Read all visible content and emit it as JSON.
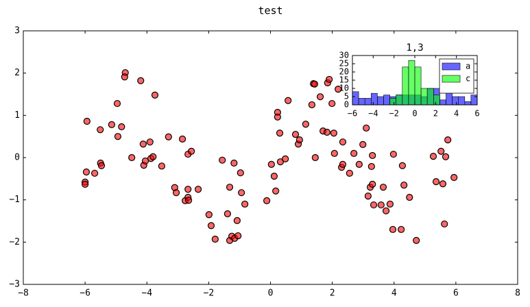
{
  "chart_data": [
    {
      "type": "scatter",
      "title": "test",
      "color": "#ff0000",
      "x": [
        -5.94,
        -5.96,
        -6.0,
        -6.0,
        -5.69,
        -5.51,
        -5.5,
        -5.47,
        -5.14,
        -4.96,
        -4.94,
        -4.82,
        -4.7,
        -4.72,
        -4.49,
        -4.2,
        -4.12,
        -4.1,
        -4.05,
        -3.9,
        -3.87,
        -3.8,
        -3.74,
        -3.52,
        -3.3,
        -3.1,
        -3.05,
        -2.85,
        -2.76,
        -2.67,
        -2.65,
        -2.67,
        -2.56,
        -2.67,
        -2.34,
        -1.99,
        -1.92,
        -1.79,
        -1.56,
        -1.39,
        -1.32,
        -1.32,
        -1.25,
        -1.16,
        -1.18,
        -1.08,
        -1.05,
        -0.97,
        -0.94,
        -0.83,
        -0.12,
        0.03,
        0.12,
        0.17,
        0.23,
        0.23,
        0.3,
        0.32,
        0.48,
        0.57,
        0.81,
        0.9,
        0.94,
        1.14,
        1.34,
        1.39,
        1.43,
        1.45,
        1.61,
        1.7,
        1.83,
        1.85,
        1.9,
        1.99,
        2.05,
        2.07,
        2.19,
        2.3,
        2.34,
        2.34,
        2.56,
        2.7,
        2.87,
        2.99,
        3.1,
        3.16,
        3.23,
        3.27,
        3.3,
        3.3,
        3.34,
        3.58,
        3.74,
        3.87,
        3.65,
        3.96,
        3.98,
        4.23,
        4.27,
        4.32,
        4.5,
        4.72,
        5.27,
        5.36,
        5.52,
        5.58,
        5.63,
        5.67,
        5.74,
        5.94
      ],
      "values": [
        0.86,
        -0.34,
        -0.58,
        -0.63,
        -0.37,
        0.66,
        -0.13,
        -0.19,
        0.78,
        1.28,
        0.5,
        0.73,
        2.01,
        1.91,
        0.0,
        1.82,
        0.32,
        -0.18,
        -0.08,
        0.37,
        -0.02,
        0.02,
        1.48,
        -0.2,
        0.49,
        -0.71,
        -0.83,
        0.44,
        -1.02,
        -0.94,
        -1.01,
        0.08,
        0.15,
        -0.75,
        -0.75,
        -1.35,
        -1.61,
        -1.93,
        -0.06,
        -1.33,
        -0.7,
        -1.96,
        -1.86,
        -1.91,
        -0.13,
        -1.49,
        -1.85,
        -0.36,
        -0.83,
        -1.1,
        -1.02,
        -0.16,
        -0.44,
        -0.79,
        1.07,
        0.96,
        0.58,
        -0.1,
        -0.03,
        1.35,
        0.55,
        0.32,
        0.42,
        0.79,
        1.25,
        1.75,
        1.74,
        0.0,
        1.44,
        0.63,
        0.6,
        1.77,
        1.85,
        1.28,
        0.58,
        0.1,
        1.62,
        -0.23,
        -0.16,
        0.37,
        -0.37,
        0.1,
        -0.16,
        0.31,
        0.7,
        -0.91,
        -0.7,
        -0.21,
        0.05,
        -0.63,
        -1.12,
        -1.12,
        -1.26,
        -1.1,
        -0.7,
        -1.7,
        0.08,
        -1.7,
        -0.19,
        -0.65,
        -0.94,
        -1.96,
        0.03,
        -0.57,
        0.15,
        -0.62,
        -1.57,
        0.02,
        0.42,
        -0.47
      ],
      "xlim": [
        -8,
        8
      ],
      "ylim": [
        -3,
        3
      ],
      "xticks": [
        {
          "value": -8,
          "label": "−8"
        },
        {
          "value": -6,
          "label": "−6"
        },
        {
          "value": -4,
          "label": "−4"
        },
        {
          "value": -2,
          "label": "−2"
        },
        0,
        2,
        4,
        6,
        8
      ],
      "yticks": [
        {
          "value": -3,
          "label": "−3"
        },
        {
          "value": -2,
          "label": "−2"
        },
        {
          "value": -1,
          "label": "−1"
        },
        0,
        1,
        2,
        3
      ]
    },
    {
      "type": "histogram",
      "title": "1,3",
      "legend": "upper right",
      "series": [
        {
          "name": "a",
          "color": "#0000ff",
          "bins": [
            -6,
            -5.4,
            -4.8,
            -4.2,
            -3.6,
            -3,
            -2.4,
            -1.8,
            -1.2,
            -0.6,
            0,
            0.6,
            1.2,
            1.8,
            2.4,
            3,
            3.6,
            4.2,
            4.8,
            5.4,
            6
          ],
          "values": [
            8,
            4,
            4,
            7,
            5,
            6,
            5,
            6,
            6,
            6,
            6,
            5,
            10,
            10,
            3,
            9,
            5,
            5,
            2,
            6
          ]
        },
        {
          "name": "c",
          "color": "#00ff00",
          "bins": [
            -2.4,
            -1.8,
            -1.2,
            -0.6,
            0,
            0.6,
            1.2,
            1.8,
            2.4
          ],
          "values": [
            4,
            6,
            23,
            27,
            23,
            10,
            10,
            6
          ]
        }
      ],
      "xlim": [
        -6,
        6
      ],
      "ylim": [
        0,
        30
      ],
      "xticks": [
        {
          "value": -6,
          "label": "−6"
        },
        {
          "value": -4,
          "label": "−4"
        },
        {
          "value": -2,
          "label": "−2"
        },
        0,
        2,
        4,
        6
      ],
      "yticks": [
        0,
        5,
        10,
        15,
        20,
        25,
        30
      ]
    }
  ]
}
